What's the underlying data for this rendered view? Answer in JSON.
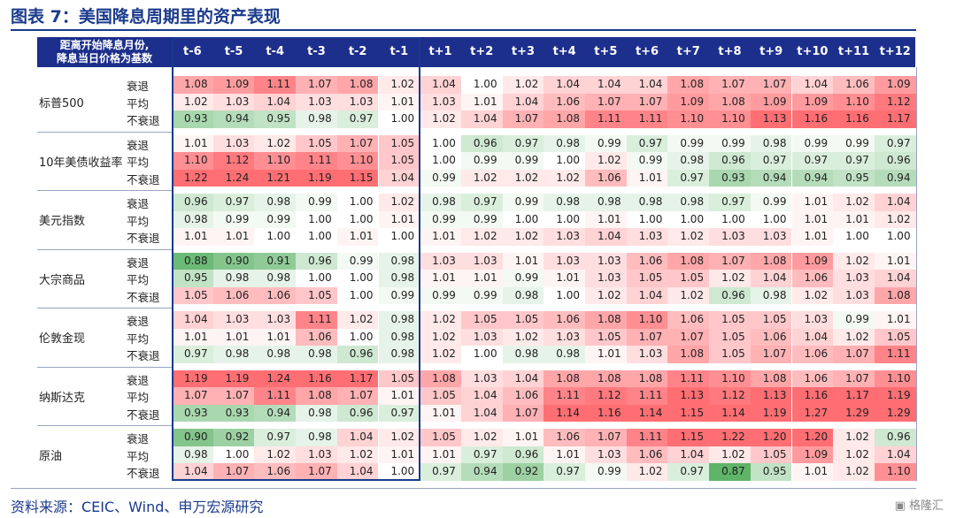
{
  "title": "图表 7：美国降息周期里的资产表现",
  "header": {
    "corner_line1": "距离开始降息月份,",
    "corner_line2": "降息当日价格为基数",
    "periods": [
      "t-6",
      "t-5",
      "t-4",
      "t-3",
      "t-2",
      "t-1",
      "t+1",
      "t+2",
      "t+3",
      "t+4",
      "t+5",
      "t+6",
      "t+7",
      "t+8",
      "t+9",
      "t+10",
      "t+11",
      "t+12"
    ]
  },
  "scenarios": [
    "衰退",
    "平均",
    "不衰退"
  ],
  "source": "资料来源：CEIC、Wind、申万宏源研究",
  "logo_text": "格隆汇",
  "chart_data": {
    "type": "table",
    "title": "图表 7：美国降息周期里的资产表现",
    "columns": [
      "t-6",
      "t-5",
      "t-4",
      "t-3",
      "t-2",
      "t-1",
      "t+1",
      "t+2",
      "t+3",
      "t+4",
      "t+5",
      "t+6",
      "t+7",
      "t+8",
      "t+9",
      "t+10",
      "t+11",
      "t+12"
    ],
    "assets": [
      {
        "name": "标普500",
        "rows": [
          {
            "scenario": "衰退",
            "values": [
              1.08,
              1.09,
              1.11,
              1.07,
              1.08,
              1.02,
              1.04,
              1.0,
              1.02,
              1.04,
              1.04,
              1.04,
              1.08,
              1.07,
              1.07,
              1.04,
              1.06,
              1.09
            ]
          },
          {
            "scenario": "平均",
            "values": [
              1.02,
              1.03,
              1.04,
              1.03,
              1.03,
              1.01,
              1.03,
              1.01,
              1.04,
              1.06,
              1.07,
              1.07,
              1.09,
              1.08,
              1.09,
              1.09,
              1.1,
              1.12
            ]
          },
          {
            "scenario": "不衰退",
            "values": [
              0.93,
              0.94,
              0.95,
              0.98,
              0.97,
              1.0,
              1.02,
              1.04,
              1.07,
              1.08,
              1.11,
              1.11,
              1.1,
              1.1,
              1.13,
              1.16,
              1.16,
              1.17
            ]
          }
        ]
      },
      {
        "name": "10年美债收益率",
        "rows": [
          {
            "scenario": "衰退",
            "values": [
              1.01,
              1.03,
              1.02,
              1.05,
              1.07,
              1.05,
              1.0,
              0.96,
              0.97,
              0.98,
              0.99,
              0.97,
              0.99,
              0.99,
              0.98,
              0.99,
              0.99,
              0.97
            ]
          },
          {
            "scenario": "平均",
            "values": [
              1.1,
              1.12,
              1.1,
              1.11,
              1.1,
              1.05,
              1.0,
              0.99,
              0.99,
              1.0,
              1.02,
              0.99,
              0.98,
              0.96,
              0.97,
              0.97,
              0.97,
              0.96
            ]
          },
          {
            "scenario": "不衰退",
            "values": [
              1.22,
              1.24,
              1.21,
              1.19,
              1.15,
              1.04,
              0.99,
              1.02,
              1.02,
              1.02,
              1.06,
              1.01,
              0.97,
              0.93,
              0.94,
              0.94,
              0.95,
              0.94
            ]
          }
        ]
      },
      {
        "name": "美元指数",
        "rows": [
          {
            "scenario": "衰退",
            "values": [
              0.96,
              0.97,
              0.98,
              0.99,
              1.0,
              1.02,
              0.98,
              0.97,
              0.99,
              0.98,
              0.98,
              0.98,
              0.98,
              0.97,
              0.99,
              1.01,
              1.02,
              1.04
            ]
          },
          {
            "scenario": "平均",
            "values": [
              0.98,
              0.99,
              0.99,
              1.0,
              1.0,
              1.01,
              0.99,
              0.99,
              1.0,
              1.0,
              1.01,
              1.0,
              1.0,
              1.0,
              1.0,
              1.01,
              1.01,
              1.02
            ]
          },
          {
            "scenario": "不衰退",
            "values": [
              1.01,
              1.01,
              1.0,
              1.0,
              1.01,
              1.0,
              1.01,
              1.02,
              1.02,
              1.03,
              1.04,
              1.03,
              1.02,
              1.03,
              1.03,
              1.01,
              1.0,
              1.0
            ]
          }
        ]
      },
      {
        "name": "大宗商品",
        "rows": [
          {
            "scenario": "衰退",
            "values": [
              0.88,
              0.9,
              0.91,
              0.96,
              0.99,
              0.98,
              1.03,
              1.03,
              1.01,
              1.03,
              1.03,
              1.06,
              1.08,
              1.07,
              1.08,
              1.09,
              1.02,
              1.01
            ]
          },
          {
            "scenario": "平均",
            "values": [
              0.95,
              0.98,
              0.98,
              1.0,
              1.0,
              0.98,
              1.01,
              1.01,
              0.99,
              1.01,
              1.03,
              1.05,
              1.05,
              1.02,
              1.04,
              1.06,
              1.03,
              1.04
            ]
          },
          {
            "scenario": "不衰退",
            "values": [
              1.05,
              1.06,
              1.06,
              1.05,
              1.0,
              0.99,
              0.99,
              0.99,
              0.98,
              1.0,
              1.02,
              1.04,
              1.02,
              0.96,
              0.98,
              1.02,
              1.03,
              1.08
            ]
          }
        ]
      },
      {
        "name": "伦敦金现",
        "rows": [
          {
            "scenario": "衰退",
            "values": [
              1.04,
              1.03,
              1.03,
              1.11,
              1.02,
              0.98,
              1.02,
              1.05,
              1.05,
              1.06,
              1.08,
              1.1,
              1.06,
              1.05,
              1.05,
              1.03,
              0.99,
              1.01
            ]
          },
          {
            "scenario": "平均",
            "values": [
              1.01,
              1.01,
              1.01,
              1.06,
              1.0,
              0.98,
              1.02,
              1.03,
              1.02,
              1.03,
              1.05,
              1.07,
              1.07,
              1.05,
              1.06,
              1.04,
              1.02,
              1.05
            ]
          },
          {
            "scenario": "不衰退",
            "values": [
              0.97,
              0.98,
              0.98,
              0.98,
              0.96,
              0.98,
              1.02,
              1.0,
              0.98,
              0.98,
              1.01,
              1.03,
              1.08,
              1.05,
              1.07,
              1.06,
              1.07,
              1.11
            ]
          }
        ]
      },
      {
        "name": "纳斯达克",
        "rows": [
          {
            "scenario": "衰退",
            "values": [
              1.19,
              1.19,
              1.24,
              1.16,
              1.17,
              1.05,
              1.08,
              1.03,
              1.04,
              1.08,
              1.08,
              1.08,
              1.11,
              1.1,
              1.08,
              1.06,
              1.07,
              1.1
            ]
          },
          {
            "scenario": "平均",
            "values": [
              1.07,
              1.07,
              1.11,
              1.08,
              1.07,
              1.01,
              1.05,
              1.04,
              1.06,
              1.11,
              1.12,
              1.11,
              1.13,
              1.12,
              1.13,
              1.16,
              1.17,
              1.19
            ]
          },
          {
            "scenario": "不衰退",
            "values": [
              0.93,
              0.93,
              0.94,
              0.98,
              0.96,
              0.97,
              1.01,
              1.04,
              1.07,
              1.14,
              1.16,
              1.14,
              1.15,
              1.14,
              1.19,
              1.27,
              1.29,
              1.29
            ]
          }
        ]
      },
      {
        "name": "原油",
        "rows": [
          {
            "scenario": "衰退",
            "values": [
              0.9,
              0.92,
              0.97,
              0.98,
              1.04,
              1.02,
              1.05,
              1.02,
              1.01,
              1.06,
              1.07,
              1.11,
              1.15,
              1.22,
              1.2,
              1.2,
              1.02,
              0.96
            ]
          },
          {
            "scenario": "平均",
            "values": [
              0.98,
              1.0,
              1.02,
              1.03,
              1.02,
              1.01,
              1.01,
              0.97,
              0.96,
              1.01,
              1.03,
              1.06,
              1.04,
              1.02,
              1.05,
              1.09,
              1.02,
              1.04
            ]
          },
          {
            "scenario": "不衰退",
            "values": [
              1.04,
              1.07,
              1.06,
              1.07,
              1.04,
              1.0,
              0.97,
              0.94,
              0.92,
              0.97,
              0.99,
              1.02,
              0.97,
              0.87,
              0.95,
              1.01,
              1.02,
              1.1
            ]
          }
        ]
      }
    ]
  }
}
